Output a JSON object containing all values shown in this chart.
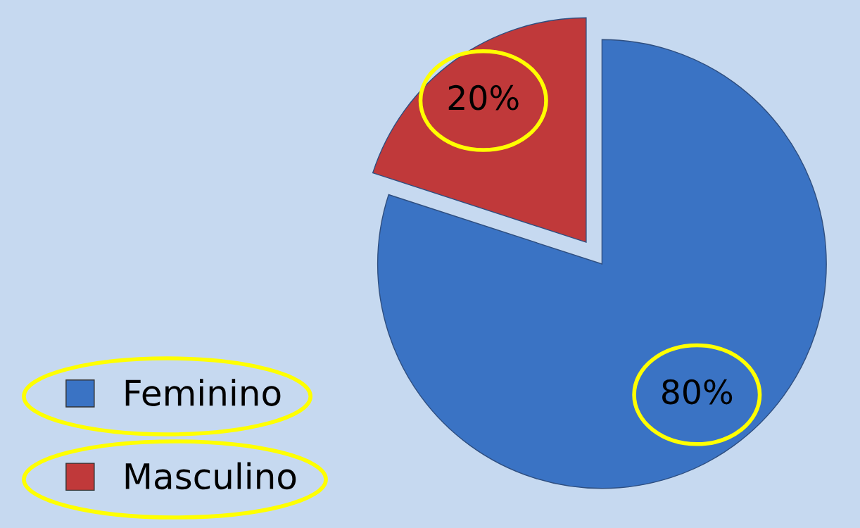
{
  "chart_data": {
    "type": "pie",
    "categories": [
      "Feminino",
      "Masculino"
    ],
    "values": [
      80,
      20
    ],
    "colors": [
      "#3a73c4",
      "#c0393a"
    ],
    "value_labels": [
      "80%",
      "20%"
    ],
    "legend": "bottom left"
  }
}
